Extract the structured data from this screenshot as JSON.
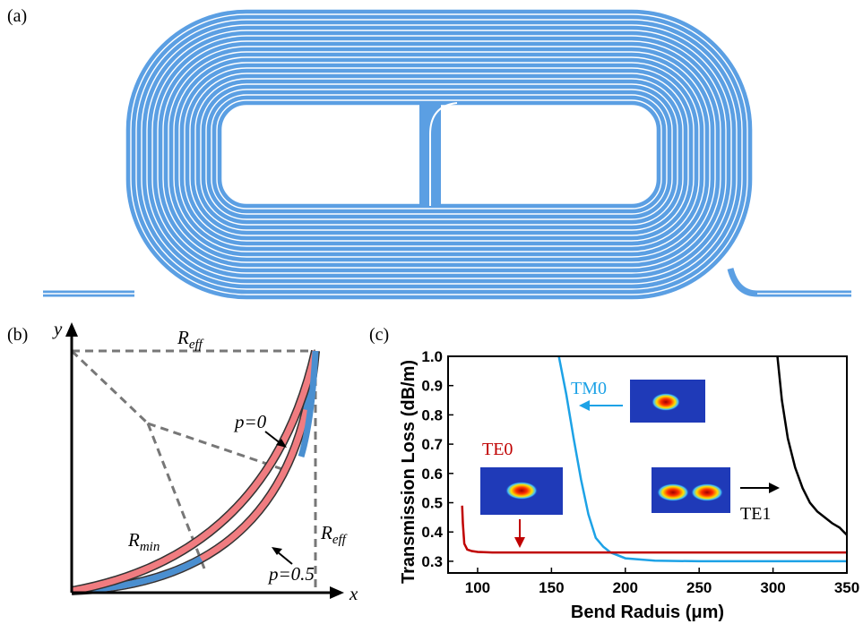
{
  "panels": {
    "a": {
      "label": "(a)"
    },
    "b": {
      "label": "(b)",
      "y_axis": "y",
      "x_axis": "x",
      "r_eff_top": {
        "base": "R",
        "sub": "eff"
      },
      "r_eff_side": {
        "base": "R",
        "sub": "eff"
      },
      "r_min": {
        "base": "R",
        "sub": "min"
      },
      "p0": "p=0",
      "p05": "p=0.5"
    },
    "c": {
      "label": "(c)"
    }
  },
  "chart_data": {
    "type": "line",
    "y_label": "Transmission Loss (dB/m)",
    "x_label": "Bend Raduis (μm)",
    "xlim": [
      80,
      350
    ],
    "xticks": [
      100,
      150,
      200,
      250,
      300,
      350
    ],
    "ylim": [
      0.26,
      1.0
    ],
    "yticks": [
      0.3,
      0.4,
      0.5,
      0.6,
      0.7,
      0.8,
      0.9,
      {
        "value": 1,
        "label": "1.0"
      }
    ],
    "series": [
      {
        "name": "TM0",
        "color": "#1da2e6",
        "x": [
          155,
          160,
          165,
          170,
          175,
          180,
          185,
          190,
          200,
          220,
          250,
          300,
          350
        ],
        "values": [
          1.0,
          0.87,
          0.72,
          0.58,
          0.46,
          0.38,
          0.35,
          0.33,
          0.31,
          0.302,
          0.3,
          0.3,
          0.3
        ]
      },
      {
        "name": "TE0",
        "color": "#c00000",
        "x": [
          89.5,
          90,
          91,
          93,
          96,
          100,
          110,
          150,
          200,
          250,
          300,
          350
        ],
        "values": [
          0.49,
          0.43,
          0.36,
          0.34,
          0.335,
          0.332,
          0.33,
          0.33,
          0.33,
          0.33,
          0.33,
          0.33
        ]
      },
      {
        "name": "TE1",
        "color": "#000000",
        "x": [
          303,
          306,
          310,
          315,
          320,
          325,
          330,
          335,
          340,
          345,
          348,
          350
        ],
        "values": [
          1.0,
          0.85,
          0.72,
          0.62,
          0.55,
          0.5,
          0.47,
          0.45,
          0.43,
          0.415,
          0.4,
          0.39
        ]
      }
    ]
  }
}
